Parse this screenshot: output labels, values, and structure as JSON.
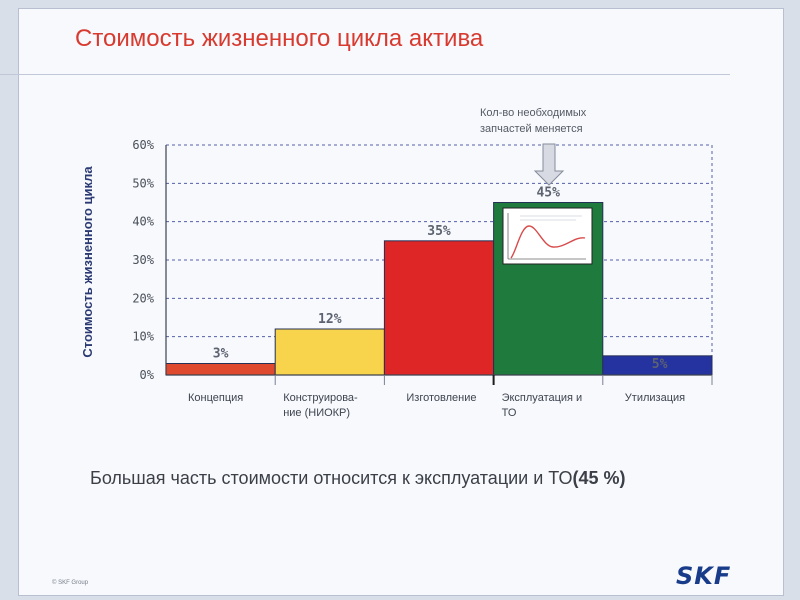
{
  "slide": {
    "title": "Стоимость жизненного цикла актива",
    "bottom_text": "Большая часть стоимости относится к эксплуатации и ТО",
    "bottom_emphasis": "(45 %)",
    "copyright": "© SKF Group",
    "logo_text": "SKF",
    "callout_text": [
      "Кол-во необходимых",
      "запчастей меняется"
    ]
  },
  "chart_data": {
    "type": "bar",
    "title": "",
    "xlabel": "",
    "ylabel": "Стоимость жизненного цикла",
    "ylim": [
      0,
      60
    ],
    "ticks": [
      "0%",
      "10%",
      "20%",
      "30%",
      "40%",
      "50%",
      "60%"
    ],
    "categories": [
      {
        "label_lines": [
          "Концепция"
        ]
      },
      {
        "label_lines": [
          "Конструирова-",
          "ние (НИОКР)"
        ]
      },
      {
        "label_lines": [
          "Изготовление"
        ]
      },
      {
        "label_lines": [
          "Эксплуатация и",
          "ТО"
        ]
      },
      {
        "label_lines": [
          "Утилизация"
        ]
      }
    ],
    "values": [
      3,
      12,
      35,
      45,
      5
    ],
    "data_labels": [
      "3%",
      "12%",
      "35%",
      "45%",
      "5%"
    ],
    "colors": [
      "#df4a2e",
      "#f7d44b",
      "#de2626",
      "#1f7a3d",
      "#2433a0"
    ],
    "grid": true,
    "legend": "none"
  }
}
